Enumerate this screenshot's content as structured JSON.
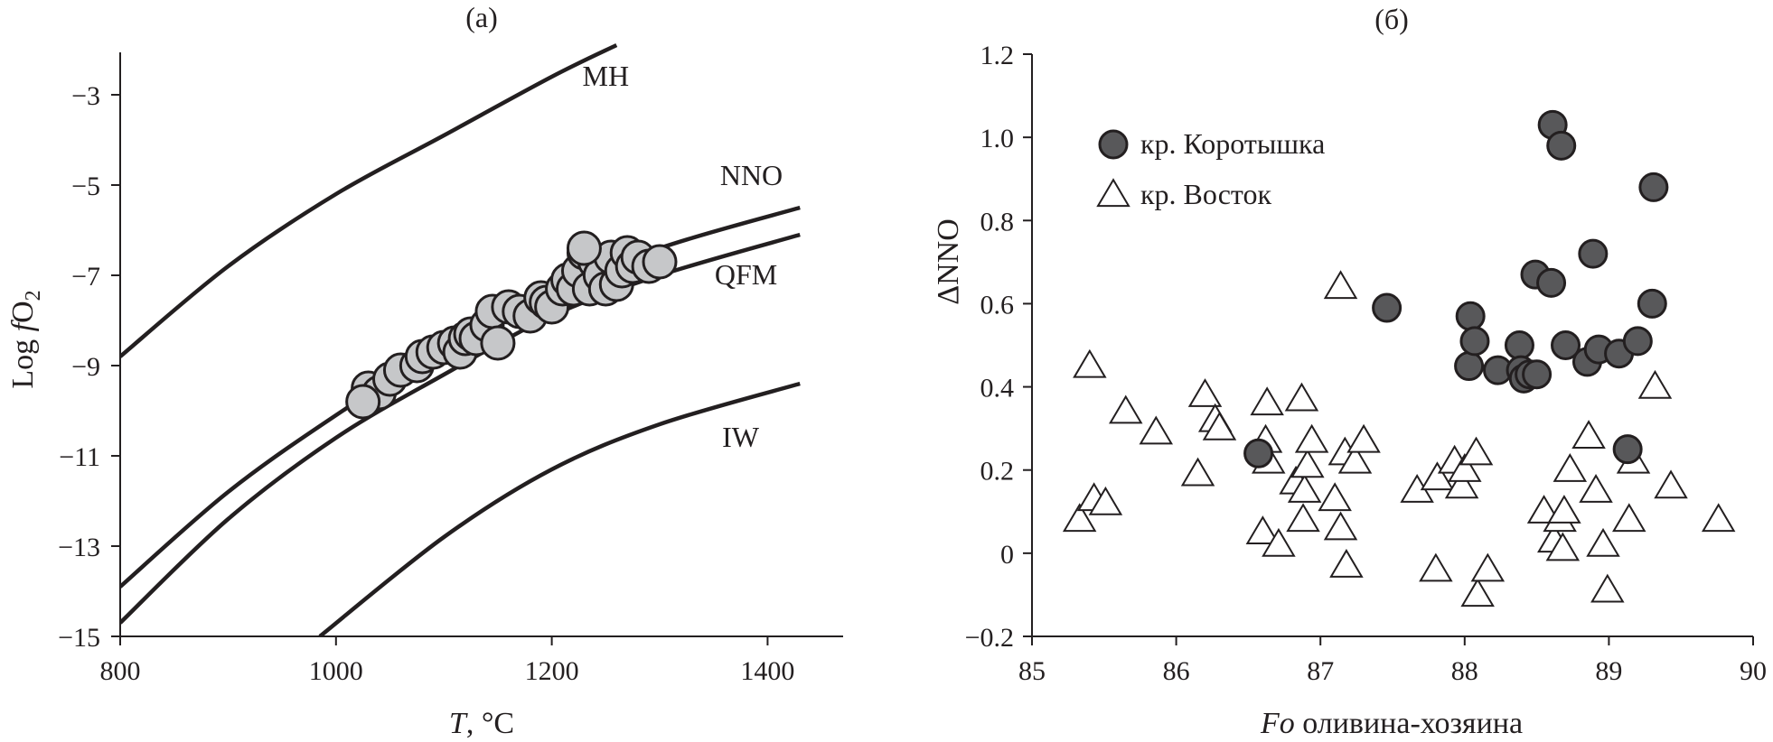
{
  "chart_data": [
    {
      "panel": "a",
      "panel_label": "(a)",
      "type": "line",
      "xlabel_italic": "T",
      "xlabel_rest": ", °C",
      "ylabel_prefix": "Log ",
      "ylabel_italic": "f",
      "ylabel_main": "O",
      "ylabel_sub": "2",
      "xlim": [
        800,
        1470
      ],
      "ylim": [
        -15,
        -1.5
      ],
      "xticks": [
        800,
        1000,
        1200,
        1400
      ],
      "yticks": [
        -3,
        -5,
        -7,
        -9,
        -11,
        -13,
        -15
      ],
      "grid": false,
      "colors": {
        "lines": "#231f20",
        "points_fill": "#c6c7c9",
        "points_edge": "#231f20"
      },
      "series": [
        {
          "name": "MH",
          "type": "line",
          "x": [
            800,
            900,
            1000,
            1100,
            1200,
            1260
          ],
          "y": [
            -8.8,
            -6.8,
            -5.2,
            -3.9,
            -2.6,
            -1.9
          ]
        },
        {
          "name": "NNO",
          "type": "line",
          "x": [
            800,
            900,
            1000,
            1100,
            1200,
            1300,
            1430
          ],
          "y": [
            -13.9,
            -11.8,
            -10.1,
            -8.6,
            -7.4,
            -6.4,
            -5.5
          ]
        },
        {
          "name": "QFM",
          "type": "line",
          "x": [
            800,
            900,
            1000,
            1100,
            1200,
            1300,
            1430
          ],
          "y": [
            -14.7,
            -12.4,
            -10.6,
            -9.2,
            -7.9,
            -7.0,
            -6.1
          ]
        },
        {
          "name": "IW",
          "type": "line",
          "x": [
            985,
            1100,
            1200,
            1300,
            1430
          ],
          "y": [
            -15.0,
            -12.8,
            -11.3,
            -10.3,
            -9.4
          ]
        }
      ],
      "points": {
        "marker": "circle",
        "x": [
          1030,
          1040,
          1050,
          1060,
          1075,
          1080,
          1090,
          1100,
          1110,
          1115,
          1120,
          1125,
          1130,
          1140,
          1145,
          1150,
          1160,
          1170,
          1180,
          1190,
          1195,
          1200,
          1210,
          1215,
          1220,
          1225,
          1230,
          1235,
          1240,
          1245,
          1250,
          1255,
          1260,
          1265,
          1270,
          1275,
          1280,
          1290,
          1300,
          1230
        ],
        "y": [
          -9.5,
          -9.6,
          -9.3,
          -9.1,
          -9.0,
          -8.8,
          -8.7,
          -8.6,
          -8.5,
          -8.7,
          -8.4,
          -8.3,
          -8.4,
          -8.1,
          -7.8,
          -8.5,
          -7.7,
          -7.8,
          -7.9,
          -7.5,
          -7.6,
          -7.7,
          -7.3,
          -7.1,
          -7.3,
          -6.9,
          -6.5,
          -7.3,
          -6.7,
          -7.0,
          -7.3,
          -6.6,
          -7.2,
          -6.9,
          -6.5,
          -6.8,
          -6.6,
          -6.8,
          -6.7,
          -6.4
        ],
        "extra": [
          [
            1025,
            -9.8
          ]
        ]
      },
      "annotations": [
        {
          "text": "MH",
          "x": 1250,
          "y": -2.8
        },
        {
          "text": "NNO",
          "x": 1385,
          "y": -5.0
        },
        {
          "text": "QFM",
          "x": 1380,
          "y": -7.2
        },
        {
          "text": "IW",
          "x": 1375,
          "y": -10.8
        }
      ]
    },
    {
      "panel": "б",
      "panel_label": "(б)",
      "type": "scatter",
      "xlabel_italic": "Fo",
      "xlabel_rest": " оливина-хозяина",
      "ylabel": "ΔNNO",
      "xlim": [
        85,
        90
      ],
      "ylim": [
        -0.2,
        1.2
      ],
      "xticks": [
        85,
        86,
        87,
        88,
        89,
        90
      ],
      "yticks": [
        -0.2,
        0,
        0.2,
        0.4,
        0.6,
        0.8,
        1.0,
        1.2
      ],
      "ytick_labels": [
        "−0.2",
        "0",
        "0.2",
        "0.4",
        "0.6",
        "0.8",
        "1.0",
        "1.2"
      ],
      "grid": false,
      "legend_position": "top-left",
      "colors": {
        "korotyshka_fill": "#58585a",
        "vostok_fill": "#ffffff",
        "edge": "#231f20"
      },
      "series": [
        {
          "name": "кр. Коротышка",
          "marker": "filled-circle",
          "x": [
            86.57,
            87.46,
            88.03,
            88.04,
            88.07,
            88.23,
            88.38,
            88.39,
            88.41,
            88.45,
            88.49,
            88.5,
            88.6,
            88.61,
            88.67,
            88.7,
            88.85,
            88.89,
            88.93,
            89.07,
            89.13,
            89.2,
            89.3,
            89.31
          ],
          "y": [
            0.24,
            0.59,
            0.45,
            0.57,
            0.51,
            0.44,
            0.5,
            0.44,
            0.42,
            0.43,
            0.67,
            0.43,
            0.65,
            1.03,
            0.98,
            0.5,
            0.46,
            0.72,
            0.49,
            0.48,
            0.25,
            0.51,
            0.6,
            0.88
          ]
        },
        {
          "name": "кр. Восток",
          "marker": "open-triangle",
          "x": [
            85.33,
            85.4,
            85.43,
            85.51,
            85.65,
            85.86,
            86.15,
            86.2,
            86.27,
            86.3,
            86.6,
            86.62,
            86.63,
            86.64,
            86.71,
            86.83,
            86.87,
            86.88,
            86.89,
            86.91,
            86.94,
            87.1,
            87.14,
            87.14,
            87.17,
            87.18,
            87.24,
            87.3,
            87.67,
            87.8,
            87.81,
            87.93,
            87.98,
            88.0,
            88.08,
            88.09,
            88.16,
            88.55,
            88.62,
            88.66,
            88.68,
            88.69,
            88.73,
            88.86,
            88.91,
            88.96,
            88.99,
            89.14,
            89.17,
            89.32,
            89.43,
            89.76
          ],
          "y": [
            0.08,
            0.45,
            0.13,
            0.12,
            0.34,
            0.29,
            0.19,
            0.38,
            0.32,
            0.3,
            0.05,
            0.27,
            0.36,
            0.22,
            0.02,
            0.17,
            0.37,
            0.08,
            0.15,
            0.21,
            0.27,
            0.13,
            0.06,
            0.64,
            0.24,
            -0.03,
            0.22,
            0.27,
            0.15,
            -0.04,
            0.18,
            0.22,
            0.16,
            0.2,
            0.24,
            -0.1,
            -0.04,
            0.1,
            0.03,
            0.08,
            0.01,
            0.1,
            0.2,
            0.28,
            0.15,
            0.02,
            -0.09,
            0.08,
            0.22,
            0.4,
            0.16,
            0.08
          ]
        }
      ]
    }
  ]
}
